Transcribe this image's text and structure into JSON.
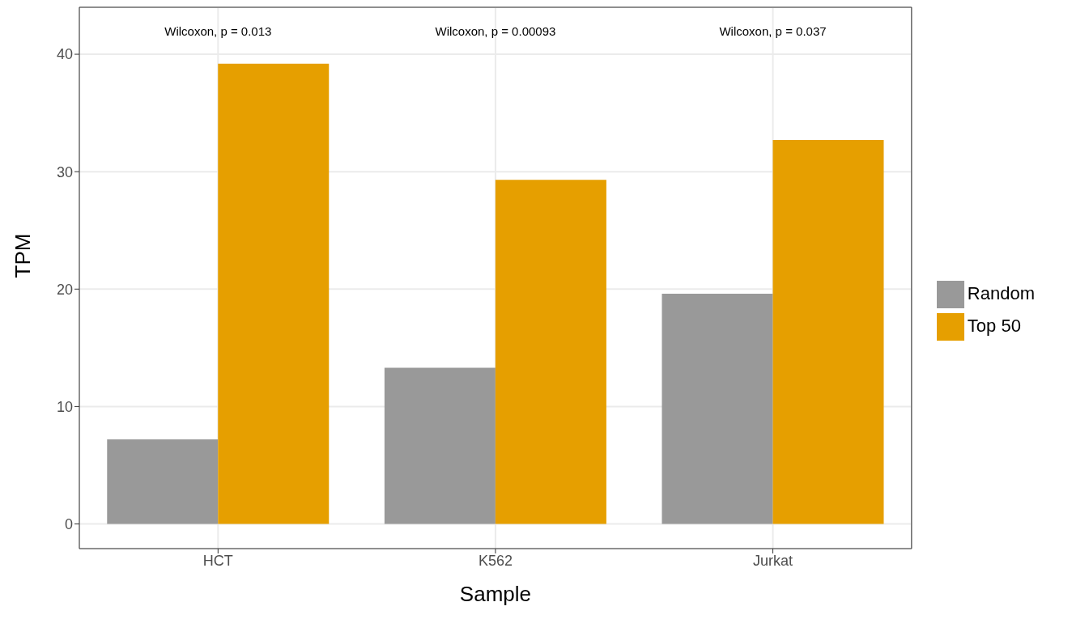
{
  "chart_data": {
    "type": "bar",
    "xlabel": "Sample",
    "ylabel": "TPM",
    "categories": [
      "HCT",
      "K562",
      "Jurkat"
    ],
    "series": [
      {
        "name": "Random",
        "color": "#999999",
        "values": [
          7.2,
          13.3,
          19.6
        ]
      },
      {
        "name": "Top 50",
        "color": "#e69f00",
        "values": [
          39.2,
          29.3,
          32.7
        ]
      }
    ],
    "ylim": [
      -2.1,
      44
    ],
    "yticks": [
      0,
      10,
      20,
      30,
      40
    ],
    "grid": true,
    "legend": "right",
    "annotations": [
      "Wilcoxon, p = 0.013",
      "Wilcoxon, p = 0.00093",
      "Wilcoxon, p = 0.037"
    ]
  }
}
